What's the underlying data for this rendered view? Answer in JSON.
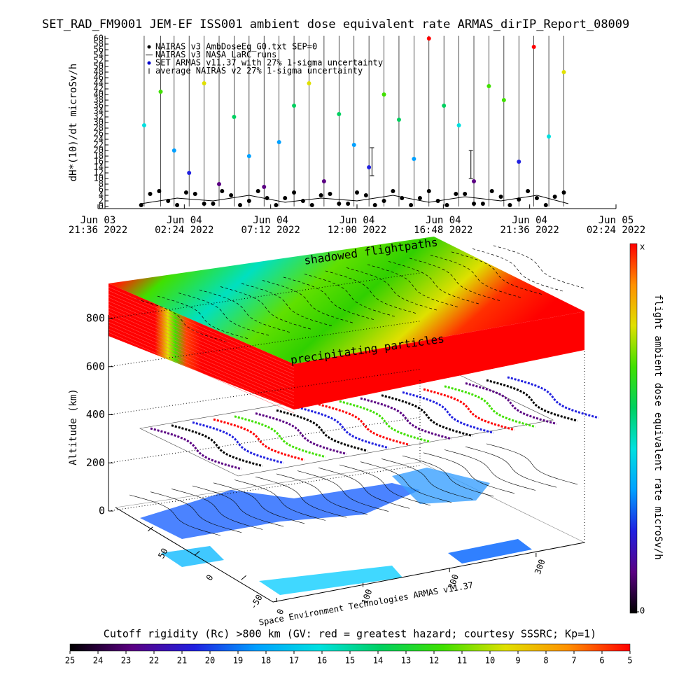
{
  "chart_data": [
    {
      "type": "timeseries",
      "title": "SET_RAD_FM9001  JEM-EF ISS001 ambient dose equivalent rate ARMAS_dirIP_Report_08009",
      "ylabel": "dH*(10)/dt microSv/h",
      "xlim": [
        "2022-06-03 21:36",
        "2022-06-05 02:24"
      ],
      "xticks": [
        {
          "value": "2022-06-03 21:36",
          "label": [
            "Jun 03",
            "21:36 2022"
          ]
        },
        {
          "value": "2022-06-04 02:24",
          "label": [
            "Jun 04",
            "02:24 2022"
          ]
        },
        {
          "value": "2022-06-04 07:12",
          "label": [
            "Jun 04",
            "07:12 2022"
          ]
        },
        {
          "value": "2022-06-04 12:00",
          "label": [
            "Jun 04",
            "12:00 2022"
          ]
        },
        {
          "value": "2022-06-04 16:48",
          "label": [
            "Jun 04",
            "16:48 2022"
          ]
        },
        {
          "value": "2022-06-04 21:36",
          "label": [
            "Jun 04",
            "21:36 2022"
          ]
        },
        {
          "value": "2022-06-05 02:24",
          "label": [
            "Jun 05",
            "02:24 2022"
          ]
        }
      ],
      "ylim": [
        0,
        60
      ],
      "yticks": [
        0,
        2,
        4,
        6,
        8,
        10,
        12,
        14,
        16,
        18,
        20,
        22,
        24,
        26,
        28,
        30,
        32,
        34,
        36,
        38,
        40,
        42,
        44,
        46,
        48,
        50,
        52,
        54,
        56,
        58,
        60
      ],
      "series": [
        {
          "name": "NAIRAS v3 AmbDoseEq_G0.txt SEP=0",
          "color": "#000000",
          "mode": "points",
          "x": [
            "2022-06-04 00:00",
            "2022-06-04 00:30",
            "2022-06-04 01:00",
            "2022-06-04 01:30",
            "2022-06-04 02:00",
            "2022-06-04 02:30",
            "2022-06-04 03:00",
            "2022-06-04 03:30",
            "2022-06-04 04:00",
            "2022-06-04 04:30",
            "2022-06-04 05:00",
            "2022-06-04 05:30",
            "2022-06-04 06:00",
            "2022-06-04 06:30",
            "2022-06-04 07:00",
            "2022-06-04 07:30",
            "2022-06-04 08:00",
            "2022-06-04 08:30",
            "2022-06-04 09:00",
            "2022-06-04 09:30",
            "2022-06-04 10:00",
            "2022-06-04 10:30",
            "2022-06-04 11:00",
            "2022-06-04 11:30",
            "2022-06-04 12:00",
            "2022-06-04 12:30",
            "2022-06-04 13:00",
            "2022-06-04 13:30",
            "2022-06-04 14:00",
            "2022-06-04 14:30",
            "2022-06-04 15:00",
            "2022-06-04 15:30",
            "2022-06-04 16:00",
            "2022-06-04 16:30",
            "2022-06-04 17:00",
            "2022-06-04 17:30",
            "2022-06-04 18:00",
            "2022-06-04 18:30",
            "2022-06-04 19:00",
            "2022-06-04 19:30",
            "2022-06-04 20:00",
            "2022-06-04 20:30",
            "2022-06-04 21:00",
            "2022-06-04 21:30",
            "2022-06-04 22:00",
            "2022-06-04 22:30",
            "2022-06-04 23:00",
            "2022-06-04 23:30"
          ],
          "values": [
            0.5,
            4.5,
            5.5,
            2,
            0.5,
            5,
            4.5,
            1,
            1,
            5.5,
            4,
            0.5,
            2,
            5.5,
            3,
            0.5,
            3,
            5,
            2,
            0.5,
            4,
            4.5,
            1,
            1,
            5,
            4,
            0.5,
            2,
            5.5,
            3,
            0.5,
            3,
            5.5,
            2,
            0.5,
            4.5,
            4.5,
            1,
            1,
            5.5,
            3.5,
            0.5,
            2.5,
            5.5,
            3,
            0.5,
            3.5,
            5
          ]
        },
        {
          "name": "NAIRAS v3 NASA LaRC runs",
          "color": "#000000",
          "mode": "line",
          "x": [
            "2022-06-04 00:00",
            "2022-06-04 02:00",
            "2022-06-04 04:00",
            "2022-06-04 06:00",
            "2022-06-04 08:00",
            "2022-06-04 10:00",
            "2022-06-04 12:00",
            "2022-06-04 14:00",
            "2022-06-04 16:00",
            "2022-06-04 18:00",
            "2022-06-04 20:00",
            "2022-06-04 22:00",
            "2022-06-04 23:45"
          ],
          "values": [
            1,
            3,
            2,
            4,
            1.5,
            3,
            2,
            4,
            1.5,
            3.5,
            2,
            4,
            1
          ]
        },
        {
          "name": "SET ARMAS v11.37 with 27% 1-sigma uncertainty",
          "color": "#0000cc",
          "mode": "colored",
          "x": [
            "2022-06-04 00:10",
            "2022-06-04 01:05",
            "2022-06-04 01:50",
            "2022-06-04 02:40",
            "2022-06-04 03:30",
            "2022-06-04 04:20",
            "2022-06-04 05:10",
            "2022-06-04 06:00",
            "2022-06-04 06:50",
            "2022-06-04 07:40",
            "2022-06-04 08:30",
            "2022-06-04 09:20",
            "2022-06-04 10:10",
            "2022-06-04 11:00",
            "2022-06-04 11:50",
            "2022-06-04 12:40",
            "2022-06-04 13:30",
            "2022-06-04 14:20",
            "2022-06-04 15:10",
            "2022-06-04 16:00",
            "2022-06-04 16:50",
            "2022-06-04 17:40",
            "2022-06-04 18:30",
            "2022-06-04 19:20",
            "2022-06-04 20:10",
            "2022-06-04 21:00",
            "2022-06-04 21:50",
            "2022-06-04 22:40",
            "2022-06-04 23:30"
          ],
          "values": [
            29,
            41,
            20,
            12,
            44,
            8,
            32,
            18,
            7,
            23,
            36,
            44,
            9,
            33,
            22,
            14,
            40,
            31,
            17,
            60,
            36,
            29,
            9,
            43,
            38,
            16,
            57,
            25,
            48
          ]
        },
        {
          "name": "average NAIRAS v2 27% 1-sigma uncertainty",
          "color": "#000000",
          "mode": "errorbar",
          "x": [
            "2022-06-04 12:50",
            "2022-06-04 18:20"
          ],
          "values": [
            16,
            15
          ],
          "errors": [
            5,
            5
          ]
        }
      ]
    },
    {
      "type": "surface3d",
      "zlabel": "Altitude (km)",
      "zlim": [
        0,
        800
      ],
      "zticks": [
        0,
        200,
        400,
        600,
        800
      ],
      "latlim": [
        90,
        -90
      ],
      "latticks": [
        50,
        0,
        -50
      ],
      "lonlim": [
        0,
        360
      ],
      "lonticks": [
        0,
        100,
        200,
        300
      ],
      "annotations": [
        "shadowed flightpaths",
        "precipitating particles"
      ],
      "footer": "Space Environment Technologies ARMAS v11.37"
    },
    {
      "type": "colorbar",
      "title": "Cutoff rigidity (Rc) >800 km (GV: red = greatest hazard; courtesy SSSRC; Kp=1)",
      "xlim": [
        25,
        5
      ],
      "xticks": [
        25,
        24,
        23,
        22,
        21,
        20,
        19,
        18,
        17,
        16,
        15,
        14,
        13,
        12,
        11,
        10,
        9,
        8,
        7,
        6,
        5
      ],
      "colors": [
        "#000000",
        "#5a0082",
        "#2020e0",
        "#00a0ff",
        "#00e0e0",
        "#00d060",
        "#40e000",
        "#e0e000",
        "#ff9000",
        "#ff0000"
      ]
    },
    {
      "type": "colorbar-vertical",
      "label": "flight ambient dose equivalent rate microSv/h",
      "top_label": "x",
      "yticks": [
        0
      ],
      "colors": [
        "#000000",
        "#5a0082",
        "#2020e0",
        "#00a0ff",
        "#00e0e0",
        "#00d060",
        "#40e000",
        "#e0e000",
        "#ff9000",
        "#ff0000"
      ]
    }
  ]
}
